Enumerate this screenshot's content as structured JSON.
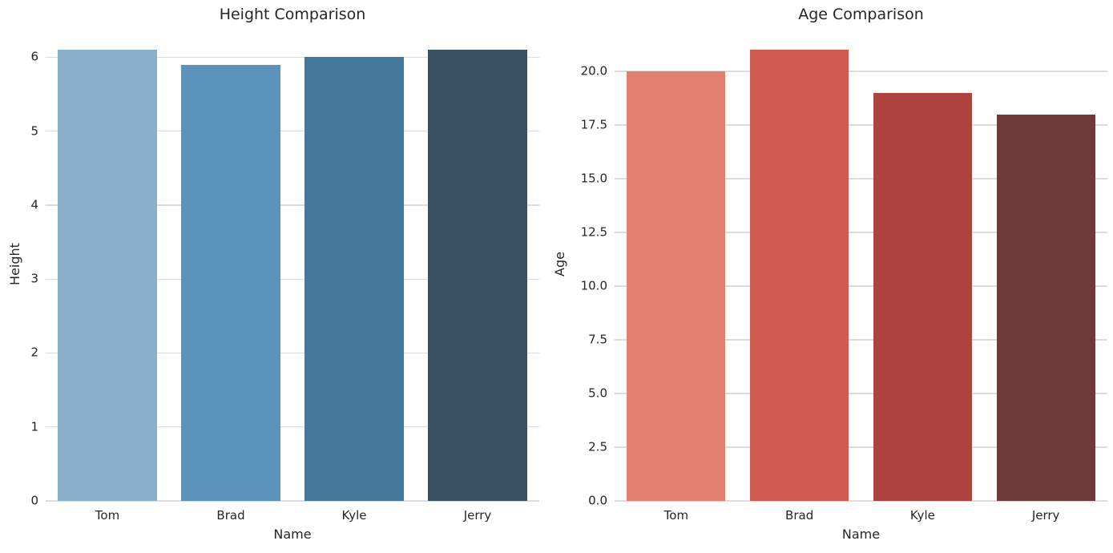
{
  "figure": {
    "background_color": "#ffffff",
    "text_color": "#262626",
    "grid_color": "#dcdcdc"
  },
  "chart_data": [
    {
      "type": "bar",
      "title": "Height Comparison",
      "xlabel": "Name",
      "ylabel": "Height",
      "categories": [
        "Tom",
        "Brad",
        "Kyle",
        "Jerry"
      ],
      "values": [
        6.1,
        5.9,
        6.0,
        6.1
      ],
      "ylim": [
        0,
        6.405
      ],
      "yticks": [
        0,
        1,
        2,
        3,
        4,
        5,
        6
      ],
      "ytick_labels": [
        "0",
        "1",
        "2",
        "3",
        "4",
        "5",
        "6"
      ],
      "bar_colors": [
        "#8aafcb",
        "#5c93bc",
        "#44799d",
        "#3a5063"
      ],
      "grid": true,
      "legend": false
    },
    {
      "type": "bar",
      "title": "Age Comparison",
      "xlabel": "Name",
      "ylabel": "Age",
      "categories": [
        "Tom",
        "Brad",
        "Kyle",
        "Jerry"
      ],
      "values": [
        20,
        21,
        19,
        18
      ],
      "ylim": [
        0,
        22.05
      ],
      "yticks": [
        0,
        2.5,
        5,
        7.5,
        10,
        12.5,
        15,
        17.5,
        20
      ],
      "ytick_labels": [
        "0.0",
        "2.5",
        "5.0",
        "7.5",
        "10.0",
        "12.5",
        "15.0",
        "17.5",
        "20.0"
      ],
      "bar_colors": [
        "#e08172",
        "#d05a50",
        "#ad423e",
        "#703a38"
      ],
      "grid": true,
      "legend": false
    }
  ]
}
